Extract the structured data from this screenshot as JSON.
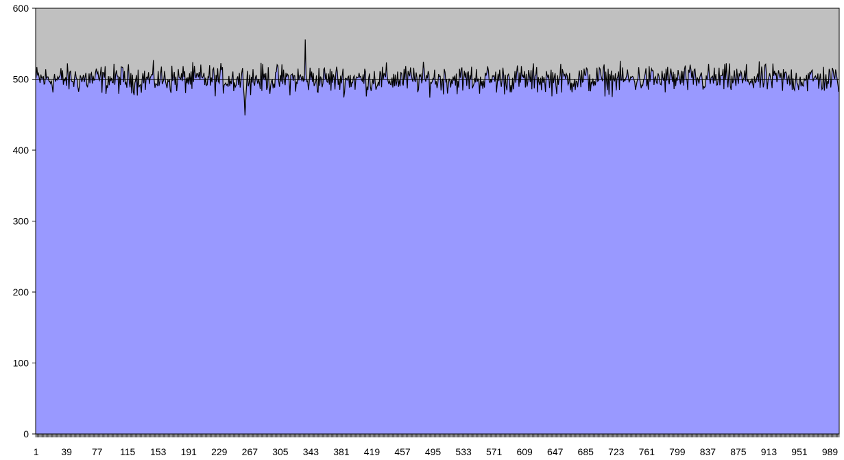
{
  "chart_data": {
    "type": "area",
    "title": "",
    "xlabel": "",
    "ylabel": "",
    "ylim": [
      0,
      600
    ],
    "xlim": [
      1,
      1000
    ],
    "yticks": [
      0,
      100,
      200,
      300,
      400,
      500,
      600
    ],
    "xtick_labels": [
      "1",
      "39",
      "77",
      "115",
      "153",
      "191",
      "229",
      "267",
      "305",
      "343",
      "381",
      "419",
      "457",
      "495",
      "533",
      "571",
      "609",
      "647",
      "685",
      "723",
      "761",
      "799",
      "837",
      "875",
      "913",
      "951",
      "989"
    ],
    "grid": false,
    "legend": "none",
    "plot_background": "#c0c0c0",
    "area_color": "#9999ff",
    "series": [
      {
        "baseline": 500,
        "mean": 500,
        "min": 449,
        "max": 556,
        "points": 1000
      }
    ]
  }
}
